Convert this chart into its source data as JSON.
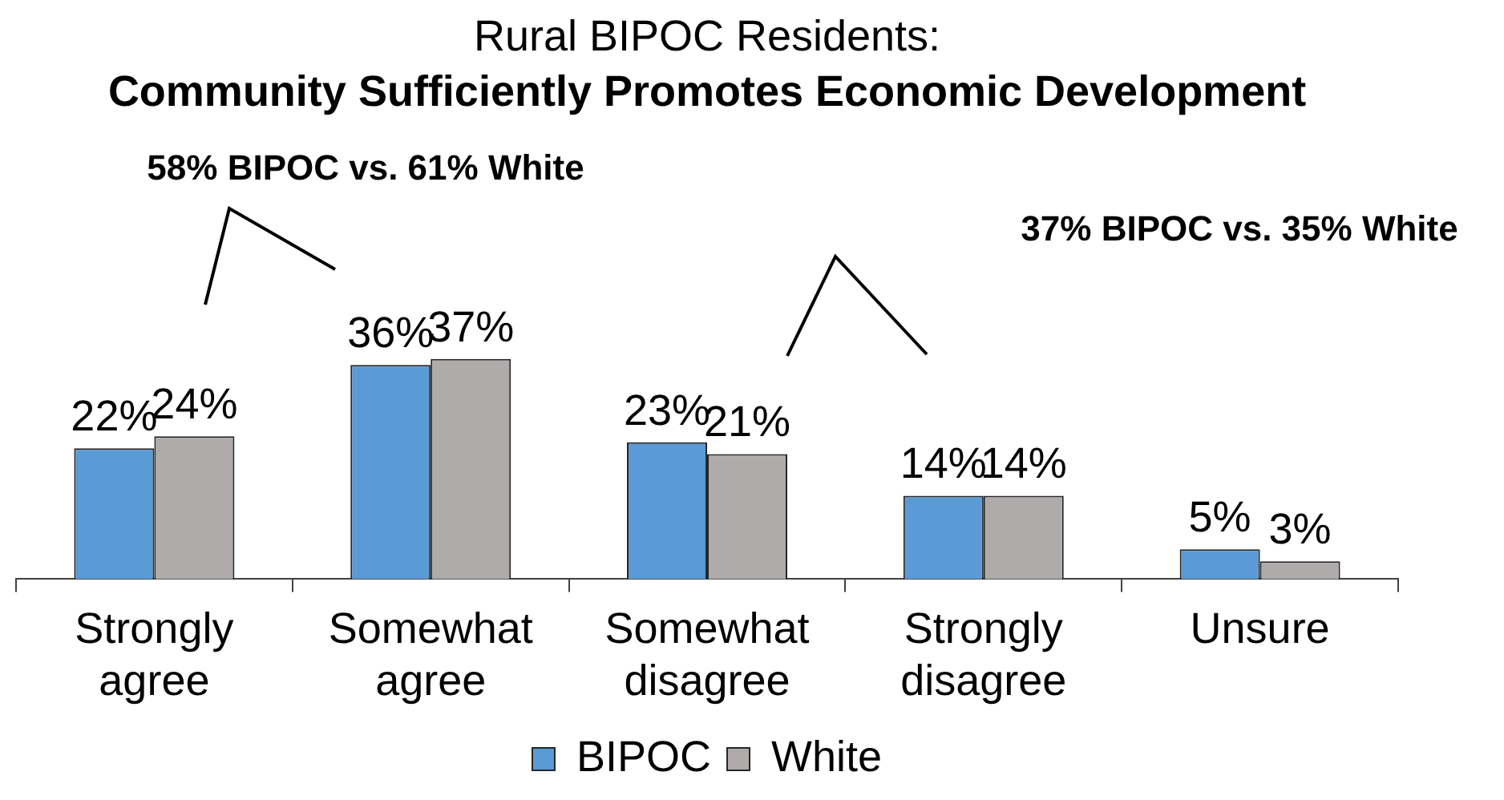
{
  "chart_data": {
    "type": "bar",
    "title": "Rural BIPOC Residents:",
    "subtitle": "Community Sufficiently Promotes Economic Development",
    "annotations": [
      "58% BIPOC vs. 61% White",
      "37% BIPOC vs. 35% White"
    ],
    "categories": [
      "Strongly agree",
      "Somewhat agree",
      "Somewhat disagree",
      "Strongly disagree",
      "Unsure"
    ],
    "series": [
      {
        "name": "BIPOC",
        "color": "#5b9bd5",
        "values": [
          22,
          36,
          23,
          14,
          5
        ],
        "value_labels": [
          "22%",
          "36%",
          "23%",
          "14%",
          "5%"
        ]
      },
      {
        "name": "White",
        "color": "#afabab",
        "values": [
          24,
          37,
          21,
          14,
          3
        ],
        "value_labels": [
          "24%",
          "37%",
          "21%",
          "14%",
          "3%"
        ]
      }
    ],
    "legend": "bottom",
    "grid": false,
    "tick_labels": "x"
  }
}
